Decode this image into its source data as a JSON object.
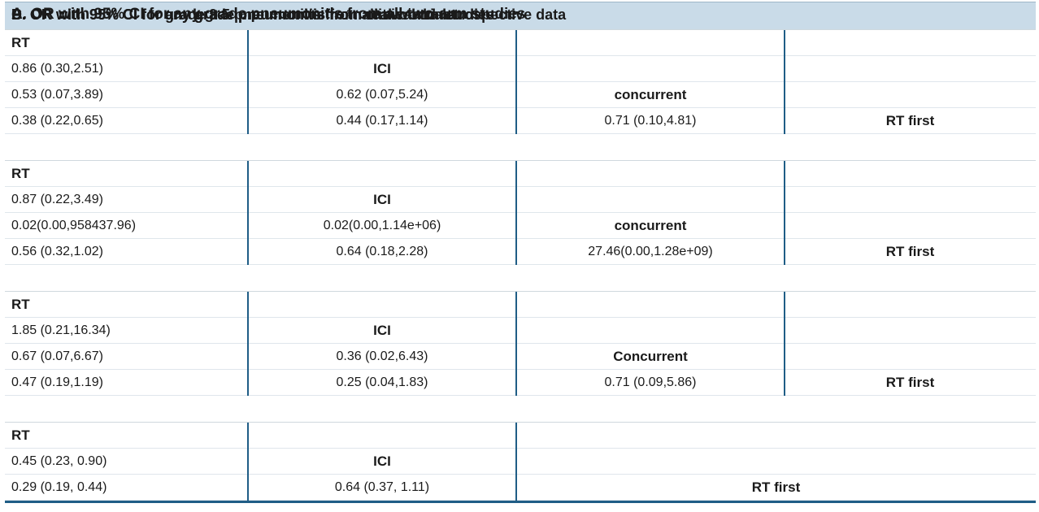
{
  "sections": [
    {
      "title": "A. OR with 95% CI for any grade pneumonitis from all two-arm studies",
      "rows": [
        [
          "RT",
          "",
          "",
          ""
        ],
        [
          "0.86 (0.30,2.51)",
          "ICI",
          "",
          ""
        ],
        [
          "0.53 (0.07,3.89)",
          "0.62 (0.07,5.24)",
          "concurrent",
          ""
        ],
        [
          "0.38 (0.22,0.65)",
          "0.44 (0.17,1.14)",
          "0.71 (0.10,4.81)",
          "RT first"
        ]
      ]
    },
    {
      "title": "B. OR with 95% CI for grade 3-5 pneumonitis from all two-arm studies",
      "rows": [
        [
          "RT",
          "",
          "",
          ""
        ],
        [
          "0.87 (0.22,3.49)",
          "ICI",
          "",
          ""
        ],
        [
          "0.02(0.00,958437.96)",
          "0.02(0.00,1.14e+06)",
          "concurrent",
          ""
        ],
        [
          "0.56 (0.32,1.02)",
          "0.64 (0.18,2.28)",
          "27.46(0.00,1.28e+09)",
          "RT first"
        ]
      ]
    },
    {
      "title": "C. OR with 95% CI for any grade pneumonitis from clinical trials",
      "rows": [
        [
          "RT",
          "",
          "",
          ""
        ],
        [
          "1.85 (0.21,16.34)",
          "ICI",
          "",
          ""
        ],
        [
          "0.67 (0.07,6.67)",
          "0.36 (0.02,6.43)",
          "Concurrent",
          ""
        ],
        [
          "0.47 (0.19,1.19)",
          "0.25 (0.04,1.83)",
          "0.71 (0.09,5.86)",
          "RT first"
        ]
      ]
    },
    {
      "title": "D. OR with 95% CI for any grade pneumonitis from real-world retrospective data",
      "rows": [
        [
          "RT",
          "",
          ""
        ],
        [
          "0.45 (0.23, 0.90)",
          "ICI",
          ""
        ],
        [
          "0.29 (0.19, 0.44)",
          "0.64 (0.37, 1.11)",
          "RT first"
        ]
      ]
    }
  ]
}
